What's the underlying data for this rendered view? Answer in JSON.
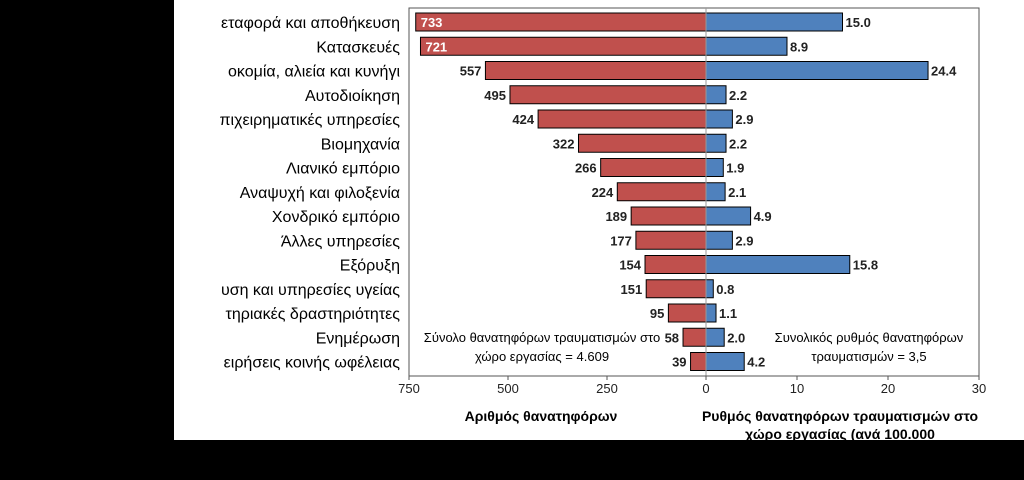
{
  "chart_data": {
    "type": "bar",
    "categories": [
      "εταφορά και αποθήκευση",
      "Κατασκευές",
      "οκομία, αλιεία και κυνήγι",
      "Αυτοδιοίκηση",
      "πιχειρηματικές υπηρεσίες",
      "Βιομηχανία",
      "Λιανικό εμπόριο",
      "Αναψυχή και φιλοξενία",
      "Χονδρικό εμπόριο",
      "Άλλες υπηρεσίες",
      "Εξόρυξη",
      "υση και υπηρεσίες υγείας",
      "τηριακές δραστηριότητες",
      "Ενημέρωση",
      "ειρήσεις κοινής ωφέλειας"
    ],
    "series": [
      {
        "values": [
          733,
          721,
          557,
          495,
          424,
          322,
          266,
          224,
          189,
          177,
          154,
          151,
          95,
          58,
          39
        ],
        "color": "#c0504d"
      },
      {
        "values": [
          15.0,
          8.9,
          24.4,
          2.2,
          2.9,
          2.2,
          1.9,
          2.1,
          4.9,
          2.9,
          15.8,
          0.8,
          1.1,
          2.0,
          4.2
        ],
        "color": "#4f81bd"
      }
    ],
    "left_value_labels": [
      "733",
      "721",
      "557",
      "495",
      "424",
      "322",
      "266",
      "224",
      "189",
      "177",
      "154",
      "151",
      "95",
      "58",
      "39"
    ],
    "right_value_labels": [
      "15.0",
      "8.9",
      "24.4",
      "2.2",
      "2.9",
      "2.2",
      "1.9",
      "2.1",
      "4.9",
      "2.9",
      "15.8",
      "0.8",
      "1.1",
      "2.0",
      "4.2"
    ],
    "left_xlim": [
      750,
      0
    ],
    "right_xlim": [
      0,
      30
    ],
    "left_ticks": [
      "750",
      "500",
      "250",
      "0"
    ],
    "right_ticks": [
      "10",
      "20",
      "30"
    ],
    "left_axis_title": "Αριθμός θανατηφόρων",
    "right_axis_title": "Ρυθμός θανατηφόρων τραυματισμών στο χώρο εργασίας (ανά 100.000",
    "annotation_left": "Σύνολο θανατηφόρων τραυματισμών στο χώρο εργασίας = 4.609",
    "annotation_right": "Συνολικός ρυθμός θανατηφόρων τραυματισμών  = 3,5",
    "grid": false
  }
}
